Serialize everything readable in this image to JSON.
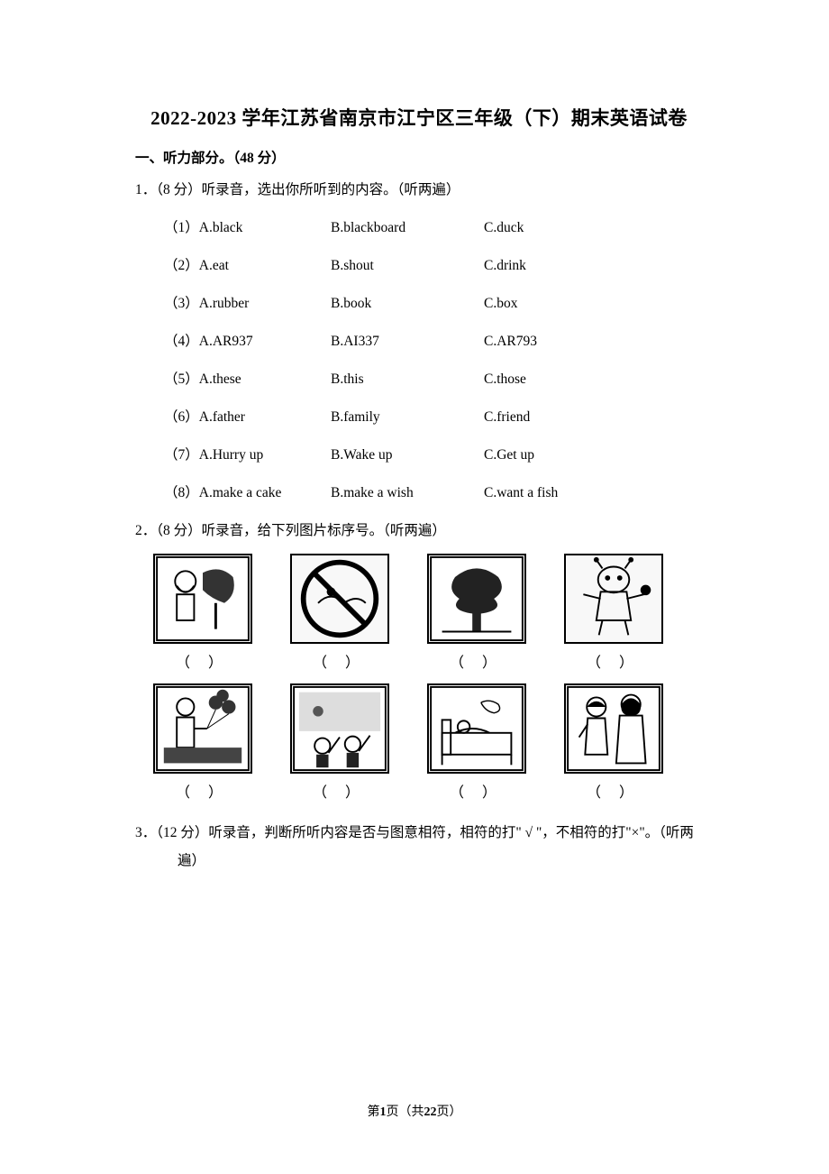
{
  "title": "2022-2023 学年江苏省南京市江宁区三年级（下）期末英语试卷",
  "section1": {
    "header": "一、听力部分。（48 分）",
    "q1": {
      "intro": "1．（8 分）听录音，选出你所听到的内容。（听两遍）",
      "rows": [
        {
          "num": "（1）",
          "a": "A.black",
          "b": "B.blackboard",
          "c": "C.duck"
        },
        {
          "num": "（2）",
          "a": "A.eat",
          "b": "B.shout",
          "c": "C.drink"
        },
        {
          "num": "（3）",
          "a": "A.rubber",
          "b": "B.book",
          "c": "C.box"
        },
        {
          "num": "（4）",
          "a": "A.AR937",
          "b": "B.AI337",
          "c": "C.AR793"
        },
        {
          "num": "（5）",
          "a": "A.these",
          "b": "B.this",
          "c": "C.those"
        },
        {
          "num": "（6）",
          "a": "A.father",
          "b": "B.family",
          "c": "C.friend"
        },
        {
          "num": "（7）",
          "a": "A.Hurry up",
          "b": "B.Wake up",
          "c": "C.Get up"
        },
        {
          "num": "（8）",
          "a": "A.make a cake",
          "b": "B.make a wish",
          "c": "C.want a fish"
        }
      ]
    },
    "q2": {
      "intro": "2．（8 分）听录音，给下列图片标序号。（听两遍）",
      "paren": "（  ）"
    },
    "q3": {
      "intro": "3．（12 分）听录音，判断所听内容是否与图意相符，相符的打\" √ \"，不相符的打\"×\"。（听两遍）"
    }
  },
  "footer": {
    "prefix": "第",
    "page": "1",
    "mid": "页（共",
    "total": "22",
    "suffix": "页）"
  }
}
